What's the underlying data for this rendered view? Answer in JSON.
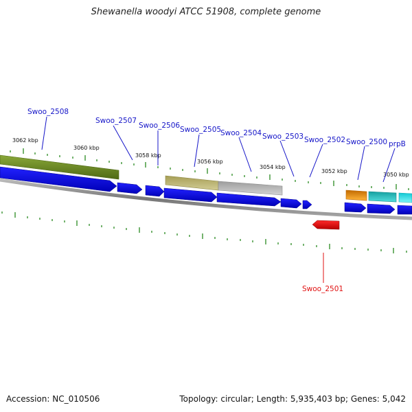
{
  "title": "Shewanella woodyi ATCC 51908, complete genome",
  "accession": "Accession: NC_010506",
  "topology": "Topology: circular; Length: 5,935,403 bp; Genes: 5,042",
  "coordinate_labels": [
    "3062 kbp",
    "3060 kbp",
    "3058 kbp",
    "3056 kbp",
    "3054 kbp",
    "3052 kbp",
    "3050 kbp"
  ],
  "gene_labels": [
    "Swoo_2508",
    "Swoo_2507",
    "Swoo_2506",
    "Swoo_2505",
    "Swoo_2504",
    "Swoo_2503",
    "Swoo_2502",
    "Swoo_2500",
    "prpB",
    "Swoo_2501"
  ],
  "colors": {
    "forward_gene": "#0a0adc",
    "reverse_gene": "#e00000",
    "backbone": "#888888",
    "tick": "#2a8a1f",
    "label_blue": "#1414c8",
    "label_red": "#e01010",
    "feature_olive": "#6b8a23",
    "feature_khaki": "#b8b070",
    "feature_gray": "#bdbdbd",
    "feature_orange": "#f39a10",
    "feature_teal": "#22c4c4",
    "feature_cyan": "#28e8f0"
  }
}
